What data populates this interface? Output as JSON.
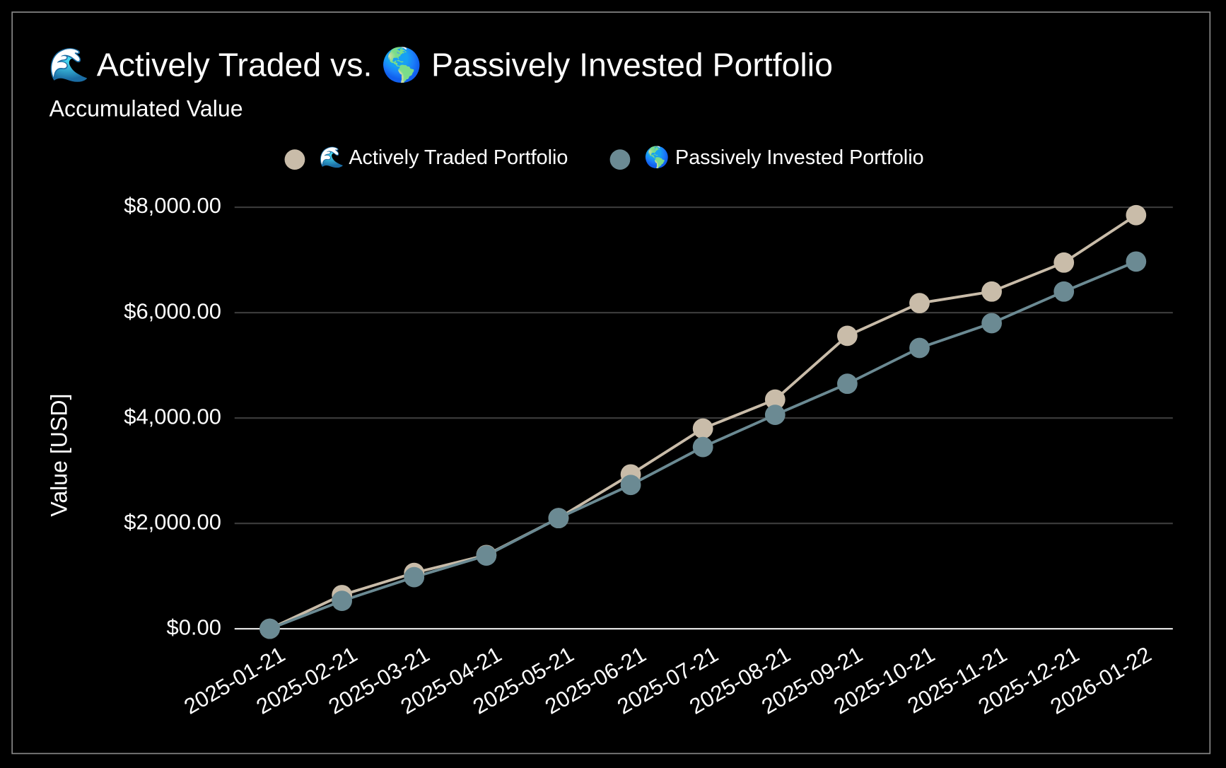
{
  "chart_data": {
    "type": "line",
    "title": "🌊 Actively Traded vs. 🌎 Passively Invested Portfolio",
    "subtitle": "Accumulated Value",
    "y_label": "Value [USD]",
    "categories": [
      "2025-01-21",
      "2025-02-21",
      "2025-03-21",
      "2025-04-21",
      "2025-05-21",
      "2025-06-21",
      "2025-07-21",
      "2025-08-21",
      "2025-09-21",
      "2025-10-21",
      "2025-11-21",
      "2025-12-21",
      "2026-01-22"
    ],
    "series": [
      {
        "name": "🌊 Actively Traded Portfolio",
        "color": "#c9bca9",
        "values": [
          0,
          640,
          1060,
          1400,
          2100,
          2930,
          3800,
          4350,
          5560,
          6180,
          6400,
          6950,
          7850
        ]
      },
      {
        "name": "🌎 Passively Invested Portfolio",
        "color": "#6b8a93",
        "values": [
          0,
          530,
          980,
          1390,
          2100,
          2730,
          3450,
          4060,
          4650,
          5330,
          5800,
          6400,
          6970
        ]
      }
    ],
    "ylim": [
      0,
      8000
    ],
    "yticks": [
      {
        "value": 0,
        "label": "$0.00"
      },
      {
        "value": 2000,
        "label": "$2,000.00"
      },
      {
        "value": 4000,
        "label": "$4,000.00"
      },
      {
        "value": 6000,
        "label": "$6,000.00"
      },
      {
        "value": 8000,
        "label": "$8,000.00"
      }
    ],
    "grid": true,
    "legend": "top"
  }
}
